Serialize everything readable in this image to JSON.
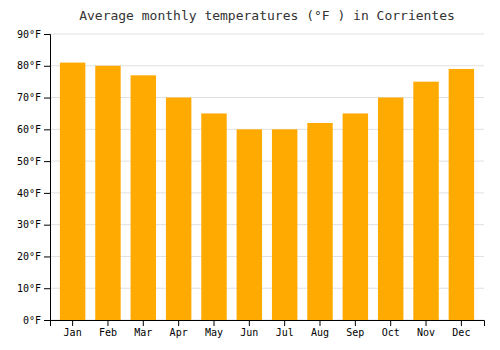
{
  "chart_data": {
    "type": "bar",
    "title": "Average monthly temperatures (°F ) in Corrientes",
    "categories": [
      "Jan",
      "Feb",
      "Mar",
      "Apr",
      "May",
      "Jun",
      "Jul",
      "Aug",
      "Sep",
      "Oct",
      "Nov",
      "Dec"
    ],
    "values": [
      81,
      80,
      77,
      70,
      65,
      60,
      60,
      62,
      65,
      70,
      75,
      79
    ],
    "color": "#FFAA00",
    "ylim": [
      0,
      90
    ],
    "yticks": [
      {
        "value": 0,
        "label": "0°F"
      },
      {
        "value": 10,
        "label": "10°F"
      },
      {
        "value": 20,
        "label": "20°F"
      },
      {
        "value": 30,
        "label": "30°F"
      },
      {
        "value": 40,
        "label": "40°F"
      },
      {
        "value": 50,
        "label": "50°F"
      },
      {
        "value": 60,
        "label": "60°F"
      },
      {
        "value": 70,
        "label": "70°F"
      },
      {
        "value": 80,
        "label": "80°F"
      },
      {
        "value": 90,
        "label": "90°F"
      }
    ],
    "grid": true
  }
}
